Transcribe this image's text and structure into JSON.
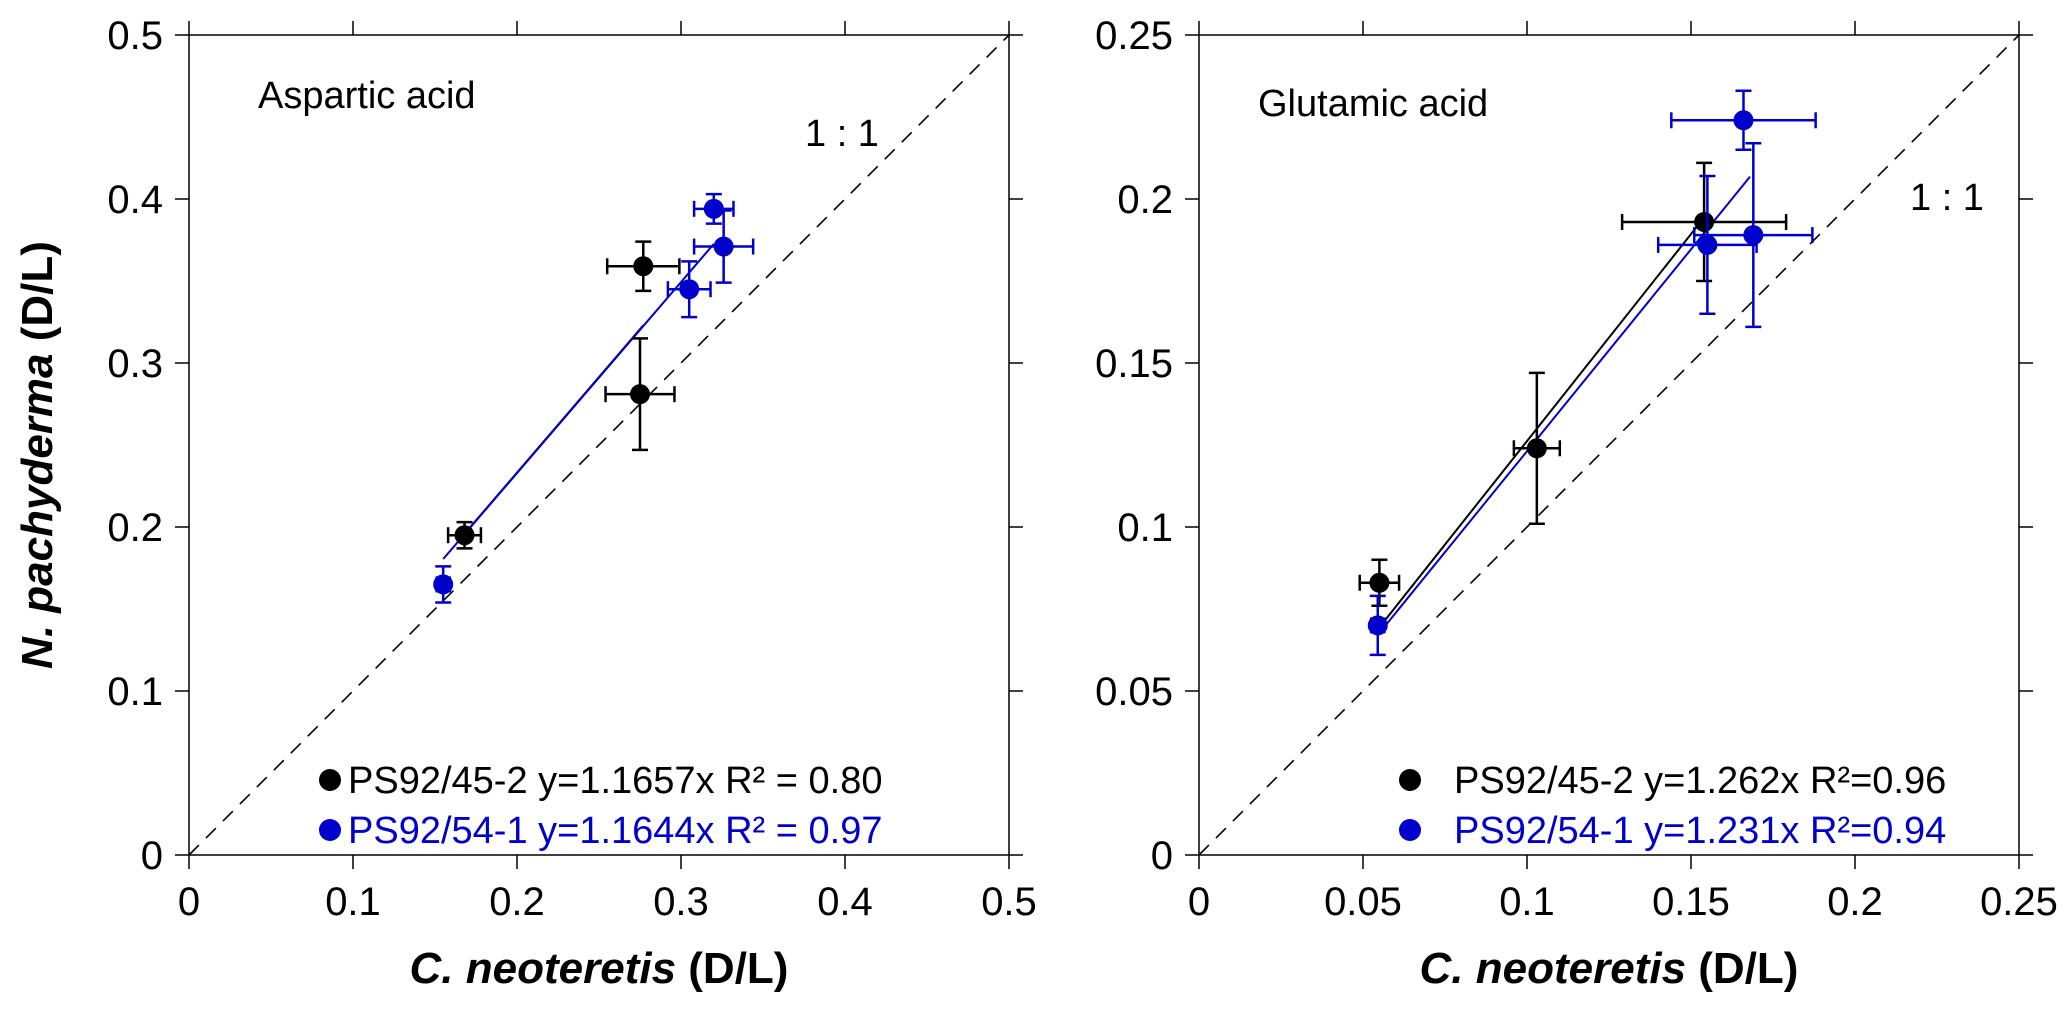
{
  "chart_data": [
    {
      "type": "scatter",
      "title": "Aspartic acid",
      "xlabel_italic": "C. neoteretis",
      "xlabel_suffix": " (D/L)",
      "ylabel_italic": "N. pachyderma",
      "ylabel_suffix": " (D/L)",
      "xlim": [
        0,
        0.5
      ],
      "ylim": [
        0,
        0.5
      ],
      "xticks": [
        0,
        0.1,
        0.2,
        0.3,
        0.4,
        0.5
      ],
      "yticks": [
        0,
        0.1,
        0.2,
        0.3,
        0.4,
        0.5
      ],
      "xtick_labels": [
        "0",
        "0.1",
        "0.2",
        "0.3",
        "0.4",
        "0.5"
      ],
      "ytick_labels": [
        "0",
        "0.1",
        "0.2",
        "0.3",
        "0.4",
        "0.5"
      ],
      "grid": false,
      "reference_line": {
        "label": "1 : 1",
        "slope": 1,
        "style": "dashed"
      },
      "legend_position": "bottom-right",
      "series": [
        {
          "name": "PS92/45-2",
          "color": "#000000",
          "legend": "PS92/45-2 y=1.1657x  R² = 0.80",
          "fit": {
            "slope": 1.1657,
            "r2": 0.8,
            "x_range": [
              0.168,
              0.277
            ]
          },
          "points": [
            {
              "x": 0.168,
              "y": 0.195,
              "xerr": 0.01,
              "yerr": 0.008
            },
            {
              "x": 0.277,
              "y": 0.359,
              "xerr": 0.022,
              "yerr": 0.015
            },
            {
              "x": 0.275,
              "y": 0.281,
              "xerr": 0.021,
              "yerr": 0.034
            }
          ]
        },
        {
          "name": "PS92/54-1",
          "color": "#0000CC",
          "legend": "PS92/54-1 y=1.1644x  R² = 0.97",
          "fit": {
            "slope": 1.1644,
            "r2": 0.97,
            "x_range": [
              0.155,
              0.32
            ]
          },
          "points": [
            {
              "x": 0.155,
              "y": 0.165,
              "xerr": 0.004,
              "yerr": 0.011
            },
            {
              "x": 0.305,
              "y": 0.345,
              "xerr": 0.013,
              "yerr": 0.017
            },
            {
              "x": 0.326,
              "y": 0.371,
              "xerr": 0.018,
              "yerr": 0.022
            },
            {
              "x": 0.32,
              "y": 0.394,
              "xerr": 0.012,
              "yerr": 0.009
            }
          ]
        }
      ]
    },
    {
      "type": "scatter",
      "title": "Glutamic acid",
      "xlabel_italic": "C. neoteretis",
      "xlabel_suffix": " (D/L)",
      "ylabel_italic": "",
      "ylabel_suffix": "",
      "xlim": [
        0,
        0.25
      ],
      "ylim": [
        0,
        0.25
      ],
      "xticks": [
        0,
        0.05,
        0.1,
        0.15,
        0.2,
        0.25
      ],
      "yticks": [
        0,
        0.05,
        0.1,
        0.15,
        0.2,
        0.25
      ],
      "xtick_labels": [
        "0",
        "0.05",
        "0.1",
        "0.15",
        "0.2",
        "0.25"
      ],
      "ytick_labels": [
        "0",
        "0.05",
        "0.1",
        "0.15",
        "0.2",
        "0.25"
      ],
      "grid": false,
      "reference_line": {
        "label": "1 : 1",
        "slope": 1,
        "style": "dashed"
      },
      "legend_position": "bottom-right",
      "series": [
        {
          "name": "PS92/45-2",
          "color": "#000000",
          "legend": "PS92/45-2 y=1.262x  R²=0.96",
          "fit": {
            "slope": 1.262,
            "r2": 0.96,
            "x_range": [
              0.055,
              0.154
            ]
          },
          "points": [
            {
              "x": 0.055,
              "y": 0.083,
              "xerr": 0.006,
              "yerr": 0.007
            },
            {
              "x": 0.103,
              "y": 0.124,
              "xerr": 0.007,
              "yerr": 0.023
            },
            {
              "x": 0.154,
              "y": 0.193,
              "xerr": 0.025,
              "yerr": 0.018
            }
          ]
        },
        {
          "name": "PS92/54-1",
          "color": "#0000CC",
          "legend": "PS92/54-1 y=1.231x  R²=0.94",
          "fit": {
            "slope": 1.231,
            "r2": 0.94,
            "x_range": [
              0.055,
              0.168
            ]
          },
          "points": [
            {
              "x": 0.0545,
              "y": 0.07,
              "xerr": 0.002,
              "yerr": 0.009
            },
            {
              "x": 0.155,
              "y": 0.186,
              "xerr": 0.015,
              "yerr": 0.021
            },
            {
              "x": 0.169,
              "y": 0.189,
              "xerr": 0.018,
              "yerr": 0.028
            },
            {
              "x": 0.166,
              "y": 0.224,
              "xerr": 0.022,
              "yerr": 0.009
            }
          ]
        }
      ]
    }
  ]
}
